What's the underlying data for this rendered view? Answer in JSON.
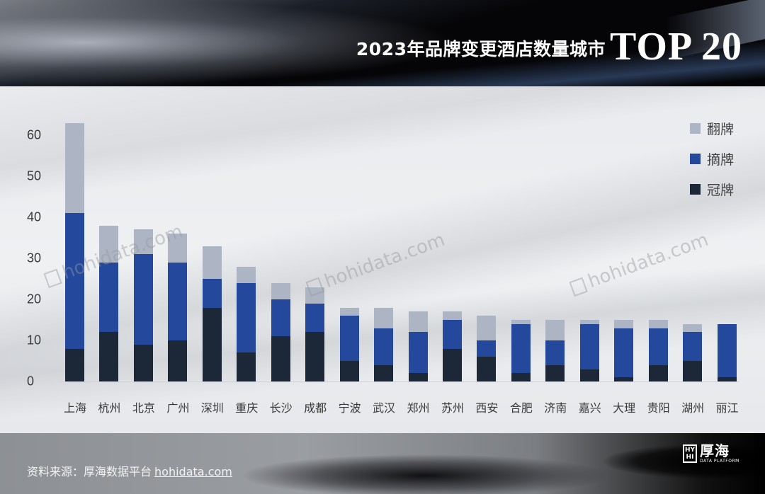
{
  "header": {
    "title_cn": "2023年品牌变更酒店数量城市",
    "title_top": "TOP 20"
  },
  "footer": {
    "source_label": "资料来源：厚海数据平台",
    "source_link": "hohidata.com",
    "logo_mark": "HY HI",
    "logo_cn": "厚海",
    "logo_en": "DATA PLATFORM"
  },
  "watermark": {
    "text": "hohidata.com"
  },
  "chart_data": {
    "type": "bar",
    "stacked": true,
    "title": "2023年品牌变更酒店数量城市TOP 20",
    "xlabel": "",
    "ylabel": "",
    "ylim": [
      0,
      63
    ],
    "yticks": [
      0,
      10,
      20,
      30,
      40,
      50,
      60
    ],
    "grid": false,
    "legend_position": "top-right",
    "categories": [
      "上海",
      "杭州",
      "北京",
      "广州",
      "深圳",
      "重庆",
      "长沙",
      "成都",
      "宁波",
      "武汉",
      "郑州",
      "苏州",
      "西安",
      "合肥",
      "济南",
      "嘉兴",
      "大理",
      "贵阳",
      "湖州",
      "丽江"
    ],
    "series": [
      {
        "name": "冠牌",
        "color": "#1c2737",
        "values": [
          8,
          12,
          9,
          10,
          18,
          7,
          11,
          12,
          5,
          4,
          2,
          8,
          6,
          2,
          4,
          3,
          1,
          4,
          5,
          1
        ]
      },
      {
        "name": "摘牌",
        "color": "#24499c",
        "values": [
          33,
          17,
          22,
          19,
          7,
          17,
          9,
          7,
          11,
          9,
          10,
          7,
          4,
          12,
          6,
          11,
          12,
          9,
          7,
          13
        ]
      },
      {
        "name": "翻牌",
        "color": "#adb5c4",
        "values": [
          22,
          9,
          6,
          7,
          8,
          4,
          4,
          4,
          2,
          5,
          5,
          2,
          6,
          1,
          5,
          1,
          2,
          2,
          2,
          0
        ]
      }
    ],
    "totals": [
      63,
      38,
      37,
      36,
      33,
      28,
      24,
      23,
      18,
      18,
      17,
      17,
      16,
      15,
      15,
      15,
      15,
      15,
      14,
      14
    ],
    "legend": [
      "翻牌",
      "摘牌",
      "冠牌"
    ]
  }
}
